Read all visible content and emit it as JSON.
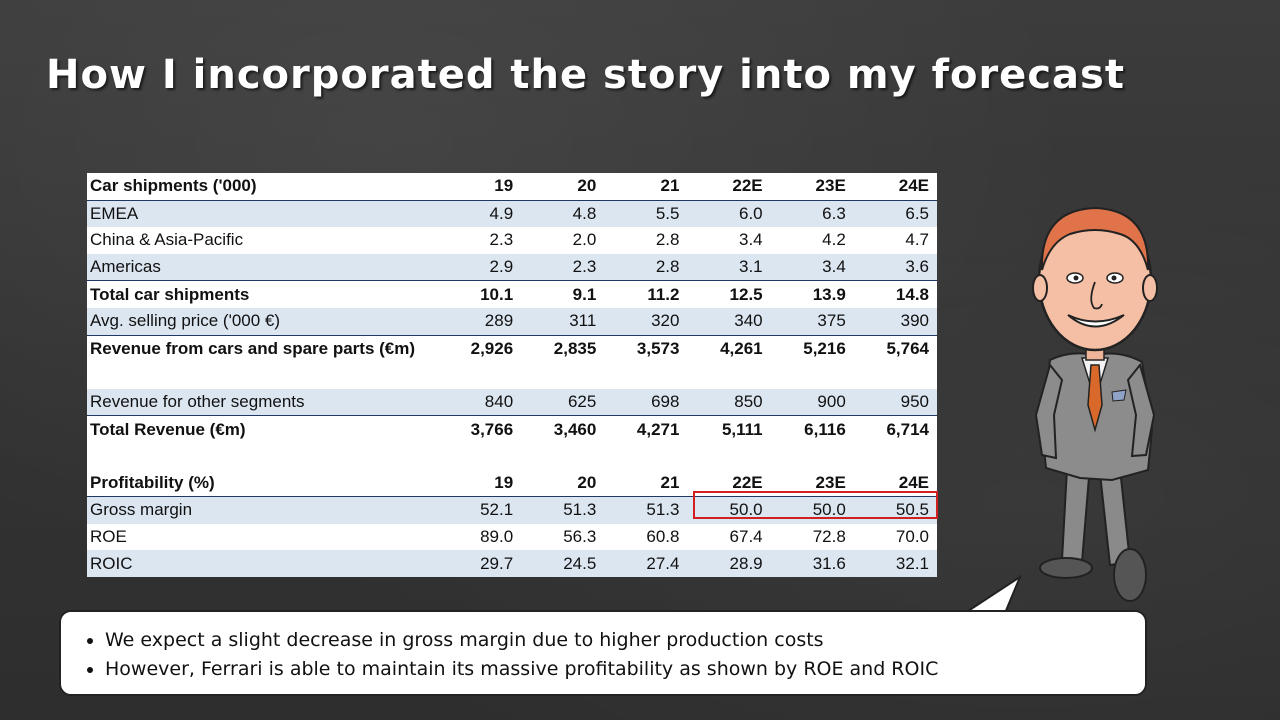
{
  "slide": {
    "title": "How I incorporated the story into my forecast"
  },
  "shipments": {
    "header": [
      "Car shipments ('000)",
      "19",
      "20",
      "21",
      "22E",
      "23E",
      "24E"
    ],
    "rows": [
      [
        "EMEA",
        "4.9",
        "4.8",
        "5.5",
        "6.0",
        "6.3",
        "6.5"
      ],
      [
        "China & Asia-Pacific",
        "2.3",
        "2.0",
        "2.8",
        "3.4",
        "4.2",
        "4.7"
      ],
      [
        "Americas",
        "2.9",
        "2.3",
        "2.8",
        "3.1",
        "3.4",
        "3.6"
      ],
      [
        "Total car shipments",
        "10.1",
        "9.1",
        "11.2",
        "12.5",
        "13.9",
        "14.8"
      ],
      [
        "Avg. selling price ('000 €)",
        "289",
        "311",
        "320",
        "340",
        "375",
        "390"
      ],
      [
        "Revenue from cars and spare parts (€m)",
        "2,926",
        "2,835",
        "3,573",
        "4,261",
        "5,216",
        "5,764"
      ],
      [
        "Revenue for other segments",
        "840",
        "625",
        "698",
        "850",
        "900",
        "950"
      ],
      [
        "Total Revenue (€m)",
        "3,766",
        "3,460",
        "4,271",
        "5,111",
        "6,116",
        "6,714"
      ]
    ]
  },
  "profitability": {
    "header": [
      "Profitability (%)",
      "19",
      "20",
      "21",
      "22E",
      "23E",
      "24E"
    ],
    "rows": [
      [
        "Gross margin",
        "52.1",
        "51.3",
        "51.3",
        "50.0",
        "50.0",
        "50.5"
      ],
      [
        "ROE",
        "89.0",
        "56.3",
        "60.8",
        "67.4",
        "72.8",
        "70.0"
      ],
      [
        "ROIC",
        "29.7",
        "24.5",
        "27.4",
        "28.9",
        "31.6",
        "32.1"
      ]
    ]
  },
  "callout": {
    "bullets": [
      "We expect a slight decrease in gross margin due to higher production costs",
      "However, Ferrari is able to maintain its massive profitability as shown by ROE and ROIC"
    ]
  },
  "colors": {
    "stripe": "#dce6f1",
    "highlight": "#d02020",
    "rule": "#1f3864"
  }
}
